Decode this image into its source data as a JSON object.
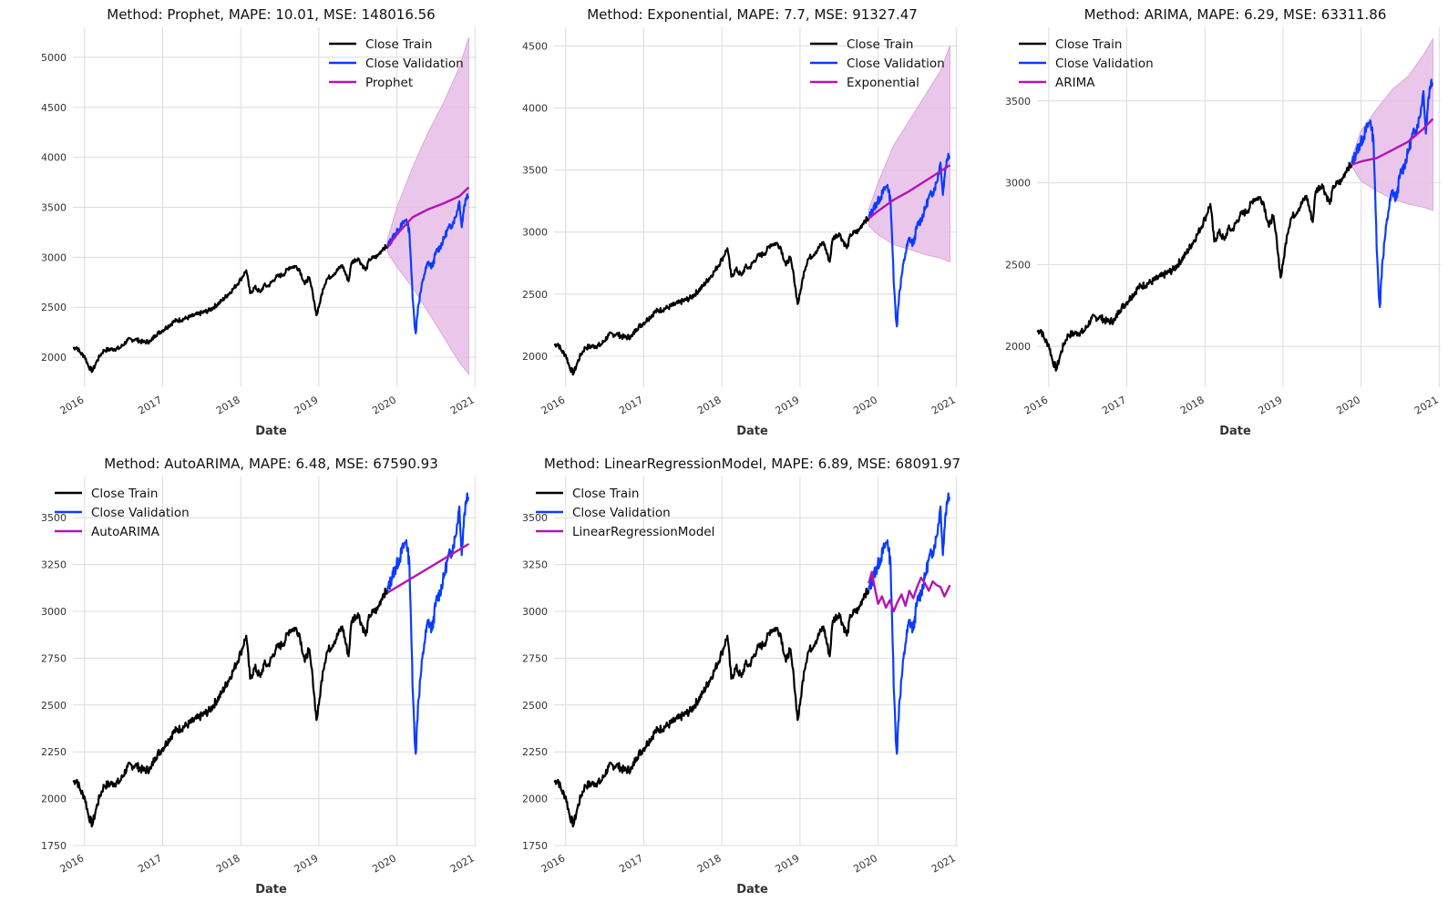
{
  "colors": {
    "train": "#000000",
    "validation": "#0a3cff",
    "forecast": "#b414b4",
    "band": "#e6bde6",
    "grid": "#dcdcdc"
  },
  "chart_data": [
    {
      "type": "line",
      "title": "Method: Prophet, MAPE: 10.01, MSE: 148016.56",
      "xlabel": "Date",
      "ylabel": "",
      "x_ticks": [
        "2016",
        "2017",
        "2018",
        "2019",
        "2020",
        "2021"
      ],
      "y_ticks": [
        2000,
        2500,
        3000,
        3500,
        4000,
        4500,
        5000
      ],
      "xlim": [
        2015.85,
        2021.02
      ],
      "ylim": [
        1700,
        5300
      ],
      "legend_position": "top-right",
      "series": [
        {
          "name": "Close Train",
          "role": "train"
        },
        {
          "name": "Close Validation",
          "role": "validation"
        },
        {
          "name": "Prophet",
          "role": "forecast",
          "x": [
            2019.88,
            2020.0,
            2020.2,
            2020.4,
            2020.6,
            2020.8,
            2020.92
          ],
          "y": [
            3100,
            3230,
            3400,
            3480,
            3540,
            3610,
            3700
          ],
          "band_low": [
            3050,
            2900,
            2700,
            2450,
            2200,
            1950,
            1830
          ],
          "band_high": [
            3180,
            3500,
            3900,
            4250,
            4550,
            4900,
            5200
          ]
        }
      ]
    },
    {
      "type": "line",
      "title": "Method: Exponential, MAPE: 7.7, MSE: 91327.47",
      "xlabel": "Date",
      "ylabel": "",
      "x_ticks": [
        "2016",
        "2017",
        "2018",
        "2019",
        "2020",
        "2021"
      ],
      "y_ticks": [
        2000,
        2500,
        3000,
        3500,
        4000,
        4500
      ],
      "xlim": [
        2015.85,
        2021.02
      ],
      "ylim": [
        1750,
        4650
      ],
      "legend_position": "top-right",
      "series": [
        {
          "name": "Close Train",
          "role": "train"
        },
        {
          "name": "Close Validation",
          "role": "validation"
        },
        {
          "name": "Exponential",
          "role": "forecast",
          "x": [
            2019.88,
            2020.0,
            2020.2,
            2020.4,
            2020.6,
            2020.8,
            2020.92
          ],
          "y": [
            3110,
            3170,
            3260,
            3330,
            3410,
            3490,
            3540
          ],
          "band_low": [
            3050,
            2980,
            2900,
            2860,
            2820,
            2790,
            2760
          ],
          "band_high": [
            3180,
            3400,
            3700,
            3900,
            4100,
            4300,
            4500
          ]
        }
      ]
    },
    {
      "type": "line",
      "title": "Method: ARIMA, MAPE: 6.29, MSE: 63311.86",
      "xlabel": "Date",
      "ylabel": "",
      "x_ticks": [
        "2016",
        "2017",
        "2018",
        "2019",
        "2020",
        "2021"
      ],
      "y_ticks": [
        2000,
        2500,
        3000,
        3500
      ],
      "xlim": [
        2015.85,
        2021.02
      ],
      "ylim": [
        1750,
        3950
      ],
      "legend_position": "top-left",
      "series": [
        {
          "name": "Close Train",
          "role": "train"
        },
        {
          "name": "Close Validation",
          "role": "validation"
        },
        {
          "name": "ARIMA",
          "role": "forecast",
          "x": [
            2019.88,
            2020.0,
            2020.2,
            2020.4,
            2020.6,
            2020.8,
            2020.92
          ],
          "y": [
            3110,
            3130,
            3150,
            3200,
            3250,
            3330,
            3390
          ],
          "band_low": [
            3100,
            3010,
            2950,
            2900,
            2870,
            2850,
            2830
          ],
          "band_high": [
            3150,
            3320,
            3450,
            3570,
            3650,
            3780,
            3880
          ]
        }
      ]
    },
    {
      "type": "line",
      "title": "Method: AutoARIMA, MAPE: 6.48, MSE: 67590.93",
      "xlabel": "Date",
      "ylabel": "",
      "x_ticks": [
        "2016",
        "2017",
        "2018",
        "2019",
        "2020",
        "2021"
      ],
      "y_ticks": [
        1750,
        2000,
        2250,
        2500,
        2750,
        3000,
        3250,
        3500
      ],
      "xlim": [
        2015.85,
        2021.02
      ],
      "ylim": [
        1750,
        3720
      ],
      "legend_position": "top-left",
      "series": [
        {
          "name": "Close Train",
          "role": "train"
        },
        {
          "name": "Close Validation",
          "role": "validation"
        },
        {
          "name": "AutoARIMA",
          "role": "forecast",
          "x": [
            2019.88,
            2020.92
          ],
          "y": [
            3100,
            3360
          ]
        }
      ]
    },
    {
      "type": "line",
      "title": "Method: LinearRegressionModel, MAPE: 6.89, MSE: 68091.97",
      "xlabel": "Date",
      "ylabel": "",
      "x_ticks": [
        "2016",
        "2017",
        "2018",
        "2019",
        "2020",
        "2021"
      ],
      "y_ticks": [
        1750,
        2000,
        2250,
        2500,
        2750,
        3000,
        3250,
        3500
      ],
      "xlim": [
        2015.85,
        2021.02
      ],
      "ylim": [
        1750,
        3720
      ],
      "legend_position": "top-left",
      "series": [
        {
          "name": "Close Train",
          "role": "train"
        },
        {
          "name": "Close Validation",
          "role": "validation"
        },
        {
          "name": "LinearRegressionModel",
          "role": "forecast",
          "x": [
            2019.88,
            2019.92,
            2019.96,
            2020.0,
            2020.05,
            2020.1,
            2020.15,
            2020.2,
            2020.25,
            2020.3,
            2020.35,
            2020.4,
            2020.45,
            2020.5,
            2020.55,
            2020.6,
            2020.65,
            2020.7,
            2020.75,
            2020.8,
            2020.85,
            2020.92
          ],
          "y": [
            3150,
            3210,
            3120,
            3040,
            3080,
            3020,
            3060,
            3000,
            3050,
            3090,
            3030,
            3110,
            3070,
            3130,
            3180,
            3150,
            3110,
            3160,
            3140,
            3130,
            3080,
            3140
          ]
        }
      ]
    }
  ],
  "shared_series": {
    "close_train": {
      "name": "Close Train",
      "x": [
        2015.85,
        2015.9,
        2015.95,
        2016.0,
        2016.05,
        2016.1,
        2016.15,
        2016.2,
        2016.25,
        2016.35,
        2016.45,
        2016.55,
        2016.65,
        2016.75,
        2016.85,
        2016.9,
        2017.0,
        2017.15,
        2017.3,
        2017.45,
        2017.6,
        2017.75,
        2017.9,
        2018.0,
        2018.07,
        2018.12,
        2018.18,
        2018.25,
        2018.3,
        2018.35,
        2018.45,
        2018.55,
        2018.62,
        2018.7,
        2018.75,
        2018.82,
        2018.87,
        2018.92,
        2018.97,
        2019.0,
        2019.05,
        2019.1,
        2019.2,
        2019.3,
        2019.38,
        2019.42,
        2019.5,
        2019.6,
        2019.65,
        2019.75,
        2019.82,
        2019.88
      ],
      "y": [
        2090,
        2100,
        2040,
        2010,
        1910,
        1860,
        1950,
        2020,
        2070,
        2080,
        2090,
        2170,
        2180,
        2150,
        2160,
        2220,
        2270,
        2360,
        2390,
        2430,
        2470,
        2560,
        2680,
        2780,
        2870,
        2640,
        2700,
        2650,
        2720,
        2710,
        2800,
        2830,
        2900,
        2910,
        2880,
        2730,
        2800,
        2650,
        2420,
        2500,
        2680,
        2780,
        2840,
        2920,
        2760,
        2950,
        2990,
        2870,
        2980,
        3010,
        3090,
        3110
      ]
    },
    "close_validation": {
      "name": "Close Validation",
      "x": [
        2019.88,
        2019.95,
        2020.02,
        2020.08,
        2020.12,
        2020.16,
        2020.18,
        2020.2,
        2020.22,
        2020.24,
        2020.27,
        2020.3,
        2020.35,
        2020.4,
        2020.45,
        2020.5,
        2020.55,
        2020.6,
        2020.65,
        2020.7,
        2020.75,
        2020.8,
        2020.83,
        2020.86,
        2020.9,
        2020.92
      ],
      "y": [
        3110,
        3200,
        3270,
        3340,
        3380,
        3250,
        2950,
        2600,
        2400,
        2240,
        2500,
        2640,
        2830,
        2950,
        2900,
        3050,
        3100,
        3180,
        3280,
        3320,
        3400,
        3560,
        3300,
        3510,
        3630,
        3610
      ]
    }
  },
  "legend_labels": {
    "train": "Close Train",
    "validation": "Close Validation"
  }
}
